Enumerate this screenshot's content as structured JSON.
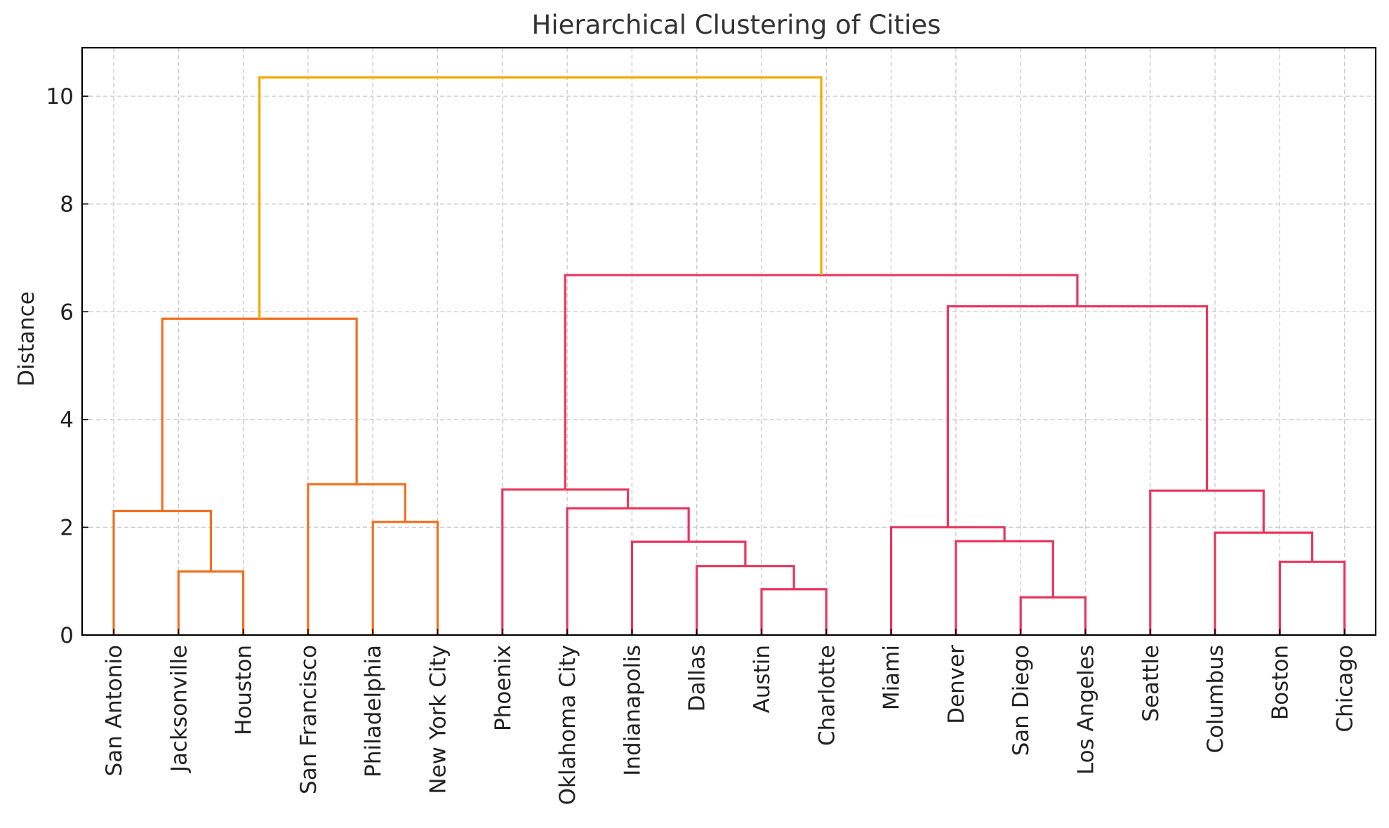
{
  "chart_data": {
    "type": "dendrogram",
    "title": "Hierarchical Clustering of Cities",
    "xlabel": "",
    "ylabel": "Distance",
    "ylim": [
      0,
      10.9
    ],
    "yticks": [
      0,
      2,
      4,
      6,
      8,
      10
    ],
    "grid": true,
    "leaves": [
      "San Antonio",
      "Jacksonville",
      "Houston",
      "San Francisco",
      "Philadelphia",
      "New York City",
      "Phoenix",
      "Oklahoma City",
      "Indianapolis",
      "Dallas",
      "Austin",
      "Charlotte",
      "Miami",
      "Denver",
      "San Diego",
      "Los Angeles",
      "Seattle",
      "Columbus",
      "Boston",
      "Chicago"
    ],
    "colors": {
      "cluster_1": "#f07020",
      "cluster_2": "#e8365d",
      "root": "#f5a800"
    },
    "merges": [
      {
        "id": "A",
        "left": "Jacksonville",
        "right": "Houston",
        "height": 1.18,
        "color": "cluster_1"
      },
      {
        "id": "B",
        "left": "San Antonio",
        "right": "A",
        "height": 2.3,
        "color": "cluster_1"
      },
      {
        "id": "C",
        "left": "Philadelphia",
        "right": "New York City",
        "height": 2.1,
        "color": "cluster_1"
      },
      {
        "id": "D",
        "left": "San Francisco",
        "right": "C",
        "height": 2.8,
        "color": "cluster_1"
      },
      {
        "id": "E",
        "left": "B",
        "right": "D",
        "height": 5.87,
        "color": "cluster_1"
      },
      {
        "id": "F",
        "left": "Austin",
        "right": "Charlotte",
        "height": 0.85,
        "color": "cluster_2"
      },
      {
        "id": "G",
        "left": "Dallas",
        "right": "F",
        "height": 1.28,
        "color": "cluster_2"
      },
      {
        "id": "H",
        "left": "Indianapolis",
        "right": "G",
        "height": 1.73,
        "color": "cluster_2"
      },
      {
        "id": "I",
        "left": "Oklahoma City",
        "right": "H",
        "height": 2.35,
        "color": "cluster_2"
      },
      {
        "id": "J",
        "left": "Phoenix",
        "right": "I",
        "height": 2.7,
        "color": "cluster_2"
      },
      {
        "id": "K",
        "left": "San Diego",
        "right": "Los Angeles",
        "height": 0.7,
        "color": "cluster_2"
      },
      {
        "id": "L",
        "left": "Denver",
        "right": "K",
        "height": 1.74,
        "color": "cluster_2"
      },
      {
        "id": "M",
        "left": "Miami",
        "right": "L",
        "height": 2.0,
        "color": "cluster_2"
      },
      {
        "id": "N",
        "left": "Boston",
        "right": "Chicago",
        "height": 1.36,
        "color": "cluster_2"
      },
      {
        "id": "O",
        "left": "Columbus",
        "right": "N",
        "height": 1.9,
        "color": "cluster_2"
      },
      {
        "id": "P",
        "left": "Seattle",
        "right": "O",
        "height": 2.68,
        "color": "cluster_2"
      },
      {
        "id": "Q",
        "left": "M",
        "right": "P",
        "height": 6.1,
        "color": "cluster_2"
      },
      {
        "id": "R",
        "left": "J",
        "right": "Q",
        "height": 6.68,
        "color": "cluster_2"
      },
      {
        "id": "S",
        "left": "E",
        "right": "R",
        "height": 10.35,
        "color": "root"
      }
    ]
  }
}
